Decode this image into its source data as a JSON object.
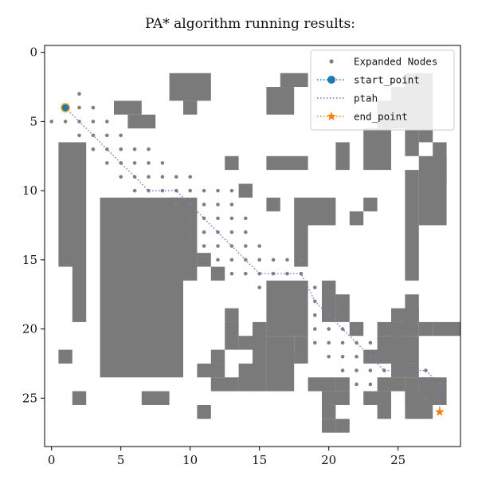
{
  "chart_data": {
    "type": "scatter",
    "title": "PA* algorithm running results:",
    "xlabel": "",
    "ylabel": "",
    "xlim": [
      -0.5,
      29.5
    ],
    "ylim": [
      28.5,
      -0.5
    ],
    "y_inverted": true,
    "x_ticks": [
      0,
      5,
      10,
      15,
      20,
      25
    ],
    "y_ticks": [
      0,
      5,
      10,
      15,
      20,
      25
    ],
    "x_tick_labels": [
      "0",
      "5",
      "10",
      "15",
      "20",
      "25"
    ],
    "y_tick_labels": [
      "0",
      "5",
      "10",
      "15",
      "20",
      "25"
    ],
    "grid": false,
    "legend_position": "top-right",
    "colors": {
      "obstacle": "#7a7a7a",
      "expanded": "#7f7f7f",
      "start": "#1f77b4",
      "path": "#9467bd",
      "end": "#ff7f0e"
    },
    "obstacles": [
      [
        9,
        2,
        3,
        2
      ],
      [
        10,
        4,
        1,
        1
      ],
      [
        17,
        2,
        2,
        1
      ],
      [
        16,
        3,
        2,
        2
      ],
      [
        26,
        2,
        2,
        1
      ],
      [
        25,
        3,
        3,
        3
      ],
      [
        24,
        4,
        2,
        2
      ],
      [
        23,
        6,
        2,
        3
      ],
      [
        26,
        6,
        1,
        2
      ],
      [
        27,
        6,
        1,
        1
      ],
      [
        26,
        9,
        1,
        8
      ],
      [
        27,
        8,
        2,
        5
      ],
      [
        28,
        7,
        1,
        3
      ],
      [
        5,
        4,
        2,
        1
      ],
      [
        6,
        5,
        2,
        1
      ],
      [
        1,
        7,
        2,
        9
      ],
      [
        2,
        16,
        1,
        4
      ],
      [
        1,
        22,
        1,
        1
      ],
      [
        2,
        25,
        1,
        1
      ],
      [
        4,
        11,
        6,
        13
      ],
      [
        9,
        11,
        1,
        11
      ],
      [
        10,
        11,
        1,
        6
      ],
      [
        11,
        15,
        1,
        1
      ],
      [
        12,
        16,
        1,
        1
      ],
      [
        7,
        25,
        2,
        1
      ],
      [
        11,
        26,
        1,
        1
      ],
      [
        13,
        8,
        1,
        1
      ],
      [
        16,
        8,
        3,
        1
      ],
      [
        21,
        7,
        1,
        2
      ],
      [
        14,
        10,
        1,
        1
      ],
      [
        16,
        11,
        1,
        1
      ],
      [
        18,
        11,
        3,
        2
      ],
      [
        18,
        13,
        1,
        3
      ],
      [
        23,
        11,
        1,
        1
      ],
      [
        22,
        12,
        1,
        1
      ],
      [
        16,
        17,
        3,
        4
      ],
      [
        16,
        21,
        2,
        4
      ],
      [
        15,
        20,
        1,
        5
      ],
      [
        14,
        21,
        1,
        1
      ],
      [
        18,
        21,
        1,
        2
      ],
      [
        13,
        19,
        1,
        1
      ],
      [
        13,
        20,
        1,
        2
      ],
      [
        12,
        22,
        1,
        1
      ],
      [
        11,
        23,
        2,
        1
      ],
      [
        12,
        24,
        2,
        1
      ],
      [
        14,
        23,
        1,
        2
      ],
      [
        17,
        22,
        1,
        1
      ],
      [
        20,
        17,
        1,
        3
      ],
      [
        21,
        18,
        1,
        2
      ],
      [
        20,
        25,
        2,
        1
      ],
      [
        21,
        27,
        1,
        1
      ],
      [
        19,
        24,
        2,
        1
      ],
      [
        21,
        24,
        1,
        1
      ],
      [
        20,
        26,
        1,
        1
      ],
      [
        20,
        27,
        1,
        1
      ],
      [
        23,
        25,
        2,
        1
      ],
      [
        24,
        24,
        2,
        1
      ],
      [
        25,
        23,
        2,
        1
      ],
      [
        26,
        25,
        2,
        1
      ],
      [
        26,
        24,
        1,
        2
      ],
      [
        27,
        24,
        1,
        2
      ],
      [
        24,
        21,
        2,
        2
      ],
      [
        24,
        20,
        3,
        1
      ],
      [
        25,
        19,
        2,
        1
      ],
      [
        26,
        18,
        1,
        2
      ],
      [
        27,
        20,
        1,
        1
      ],
      [
        28,
        20,
        2,
        1
      ],
      [
        25,
        21,
        2,
        2
      ],
      [
        27,
        24,
        2,
        2
      ],
      [
        26,
        26,
        2,
        1
      ],
      [
        24,
        26,
        1,
        1
      ],
      [
        22,
        20,
        1,
        1
      ],
      [
        23,
        22,
        2,
        1
      ]
    ],
    "expanded_nodes": [
      [
        0,
        5
      ],
      [
        1,
        4
      ],
      [
        2,
        3
      ],
      [
        2,
        4
      ],
      [
        3,
        4
      ],
      [
        1,
        5
      ],
      [
        2,
        5
      ],
      [
        3,
        5
      ],
      [
        4,
        5
      ],
      [
        2,
        6
      ],
      [
        3,
        6
      ],
      [
        4,
        6
      ],
      [
        5,
        6
      ],
      [
        3,
        7
      ],
      [
        4,
        7
      ],
      [
        5,
        7
      ],
      [
        6,
        7
      ],
      [
        7,
        7
      ],
      [
        4,
        8
      ],
      [
        5,
        8
      ],
      [
        6,
        8
      ],
      [
        7,
        8
      ],
      [
        8,
        8
      ],
      [
        5,
        9
      ],
      [
        6,
        9
      ],
      [
        7,
        9
      ],
      [
        8,
        9
      ],
      [
        9,
        9
      ],
      [
        10,
        9
      ],
      [
        6,
        10
      ],
      [
        7,
        10
      ],
      [
        8,
        10
      ],
      [
        9,
        10
      ],
      [
        10,
        10
      ],
      [
        11,
        10
      ],
      [
        12,
        10
      ],
      [
        13,
        10
      ],
      [
        9,
        11
      ],
      [
        10,
        11
      ],
      [
        11,
        11
      ],
      [
        12,
        11
      ],
      [
        13,
        11
      ],
      [
        10,
        12
      ],
      [
        11,
        12
      ],
      [
        12,
        12
      ],
      [
        13,
        12
      ],
      [
        14,
        12
      ],
      [
        10,
        13
      ],
      [
        11,
        13
      ],
      [
        12,
        13
      ],
      [
        13,
        13
      ],
      [
        14,
        13
      ],
      [
        11,
        14
      ],
      [
        12,
        14
      ],
      [
        13,
        14
      ],
      [
        14,
        14
      ],
      [
        15,
        14
      ],
      [
        12,
        15
      ],
      [
        13,
        15
      ],
      [
        14,
        15
      ],
      [
        15,
        15
      ],
      [
        16,
        15
      ],
      [
        17,
        15
      ],
      [
        18,
        15
      ],
      [
        13,
        16
      ],
      [
        14,
        16
      ],
      [
        15,
        16
      ],
      [
        16,
        16
      ],
      [
        17,
        16
      ],
      [
        18,
        16
      ],
      [
        15,
        17
      ],
      [
        19,
        17
      ],
      [
        19,
        18
      ],
      [
        19,
        19
      ],
      [
        20,
        19
      ],
      [
        19,
        20
      ],
      [
        20,
        20
      ],
      [
        21,
        20
      ],
      [
        22,
        20
      ],
      [
        19,
        21
      ],
      [
        20,
        21
      ],
      [
        21,
        21
      ],
      [
        22,
        21
      ],
      [
        23,
        21
      ],
      [
        20,
        22
      ],
      [
        21,
        22
      ],
      [
        22,
        22
      ],
      [
        23,
        22
      ],
      [
        21,
        23
      ],
      [
        22,
        23
      ],
      [
        23,
        23
      ],
      [
        24,
        23
      ],
      [
        22,
        24
      ],
      [
        23,
        24
      ],
      [
        25,
        24
      ],
      [
        27,
        23
      ],
      [
        27,
        25
      ],
      [
        28,
        24
      ]
    ],
    "start_point": [
      1,
      4
    ],
    "end_point": [
      28,
      26
    ],
    "path": [
      [
        1,
        4
      ],
      [
        2,
        5
      ],
      [
        3,
        6
      ],
      [
        4,
        7
      ],
      [
        5,
        8
      ],
      [
        6,
        9
      ],
      [
        7,
        10
      ],
      [
        8,
        10
      ],
      [
        9,
        10
      ],
      [
        10,
        11
      ],
      [
        11,
        12
      ],
      [
        12,
        13
      ],
      [
        13,
        14
      ],
      [
        14,
        15
      ],
      [
        15,
        16
      ],
      [
        16,
        16
      ],
      [
        17,
        16
      ],
      [
        18,
        16
      ],
      [
        19,
        18
      ],
      [
        20,
        19
      ],
      [
        21,
        20
      ],
      [
        22,
        21
      ],
      [
        23,
        22
      ],
      [
        24,
        23
      ],
      [
        25,
        23
      ],
      [
        26,
        23
      ],
      [
        27,
        23
      ],
      [
        28,
        24
      ],
      [
        28,
        26
      ]
    ],
    "legend": [
      {
        "label": "Expanded Nodes",
        "marker": "dot",
        "color": "#7f7f7f"
      },
      {
        "label": "start_point",
        "marker": "circle-line",
        "color": "#1f77b4"
      },
      {
        "label": "ptah",
        "marker": "line",
        "color": "#9467bd"
      },
      {
        "label": "end_point",
        "marker": "star-line",
        "color": "#ff7f0e"
      }
    ]
  }
}
